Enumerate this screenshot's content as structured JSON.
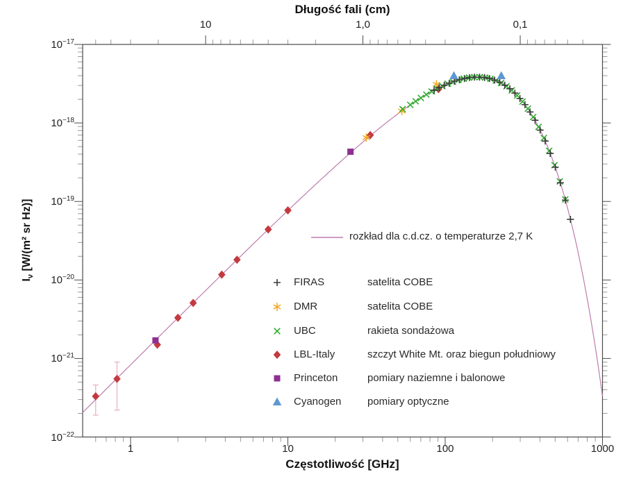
{
  "axes": {
    "top": {
      "title": "Długość fali (cm)",
      "unit": "cm",
      "scale": "log",
      "tick_labels": [
        "10",
        "1,0",
        "0,1"
      ],
      "tick_wavelengths_cm": [
        10,
        1.0,
        0.1
      ],
      "relation": "wavelength_cm = 30 / frequency_GHz"
    },
    "bottom": {
      "title": "Częstotliwość [GHz]",
      "unit": "GHz",
      "scale": "log",
      "tick_labels": [
        "1",
        "10",
        "100",
        "1000"
      ],
      "tick_values_ghz": [
        1,
        10,
        100,
        1000
      ],
      "range_ghz": [
        0.5,
        1000
      ]
    },
    "y": {
      "title_prefix": "I",
      "title_sub": "ν",
      "title_suffix": " [W/(m² sr Hz)]",
      "scale": "log",
      "tick_exponents": [
        -17,
        -18,
        -19,
        -20,
        -21,
        -22
      ],
      "range": [
        1e-22,
        1.13e-17
      ]
    }
  },
  "legend": {
    "curve_label": "rozkład dla c.d.cz. o temperaturze 2,7 K",
    "items": [
      {
        "label": "FIRAS",
        "desc": "satelita COBE",
        "marker": "plus",
        "color": "#3a3a3a"
      },
      {
        "label": "DMR",
        "desc": "satelita COBE",
        "marker": "star6",
        "color": "#f3a71f"
      },
      {
        "label": "UBC",
        "desc": "rakieta sondażowa",
        "marker": "cross",
        "color": "#2fae2f"
      },
      {
        "label": "LBL-Italy",
        "desc": "szczyt White Mt. oraz biegun południowy",
        "marker": "diamond",
        "color": "#c23a3f"
      },
      {
        "label": "Princeton",
        "desc": "pomiary naziemne i balonowe",
        "marker": "square",
        "color": "#8e2f91"
      },
      {
        "label": "Cyanogen",
        "desc": "pomiary optyczne",
        "marker": "triangle",
        "color": "#5d98d1"
      }
    ]
  },
  "chart_data": {
    "type": "scatter",
    "x_unit": "GHz",
    "y_unit": "W/(m² sr Hz)",
    "x_range": [
      0.5,
      1000
    ],
    "y_range": [
      1e-22,
      1.13e-17
    ],
    "grid": false,
    "legend_position": "center-right",
    "blackbody_curve": {
      "label": "rozkład dla c.d.cz. o temperaturze 2,7 K",
      "temperature_label": "2,7 K",
      "temperature_K": 2.725,
      "color": "#bd7cae"
    },
    "series": [
      {
        "name": "FIRAS",
        "desc": "satelita COBE",
        "marker": "plus",
        "color": "#3a3a3a",
        "points": [
          [
            85,
            2.61e-18
          ],
          [
            91.5,
            2.82e-18
          ],
          [
            98.6,
            3.02e-18
          ],
          [
            106.1,
            3.21e-18
          ],
          [
            114.3,
            3.4e-18
          ],
          [
            123,
            3.55e-18
          ],
          [
            132.5,
            3.68e-18
          ],
          [
            142.6,
            3.78e-18
          ],
          [
            153.6,
            3.83e-18
          ],
          [
            165.4,
            3.83e-18
          ],
          [
            178.1,
            3.78e-18
          ],
          [
            191.7,
            3.68e-18
          ],
          [
            206.4,
            3.51e-18
          ],
          [
            222.3,
            3.3e-18
          ],
          [
            239.3,
            3.03e-18
          ],
          [
            257.7,
            2.73e-18
          ],
          [
            277.4,
            2.4e-18
          ],
          [
            298.7,
            2.05e-18
          ],
          [
            321.6,
            1.71e-18
          ],
          [
            346.3,
            1.38e-18
          ],
          [
            372.9,
            1.08e-18
          ],
          [
            401.5,
            8.11e-19
          ],
          [
            432.3,
            5.88e-19
          ],
          [
            465.4,
            4.09e-19
          ],
          [
            501.1,
            2.73e-19
          ],
          [
            539.6,
            1.73e-19
          ],
          [
            581,
            1.04e-19
          ],
          [
            625.6,
            5.92e-20
          ]
        ]
      },
      {
        "name": "DMR",
        "desc": "satelita COBE",
        "marker": "star6",
        "color": "#f3a71f",
        "points": [
          [
            31.5,
            6.5e-19
          ],
          [
            53,
            1.42e-18
          ],
          [
            88,
            3.1e-18
          ]
        ]
      },
      {
        "name": "UBC",
        "desc": "rakieta sondażowa",
        "marker": "cross",
        "color": "#2fae2f",
        "points": [
          [
            53.6,
            1.5e-18
          ],
          [
            60,
            1.7e-18
          ],
          [
            64.9,
            1.89e-18
          ],
          [
            70.1,
            2.08e-18
          ],
          [
            75.9,
            2.3e-18
          ],
          [
            82,
            2.51e-18
          ],
          [
            88.7,
            2.73e-18
          ],
          [
            95.9,
            2.95e-18
          ],
          [
            103.7,
            3.16e-18
          ],
          [
            112.2,
            3.35e-18
          ],
          [
            121.3,
            3.52e-18
          ],
          [
            131.2,
            3.67e-18
          ],
          [
            141.8,
            3.77e-18
          ],
          [
            153.4,
            3.83e-18
          ],
          [
            165.9,
            3.83e-18
          ],
          [
            179.4,
            3.78e-18
          ],
          [
            194,
            3.65e-18
          ],
          [
            209.8,
            3.47e-18
          ],
          [
            226.8,
            3.23e-18
          ],
          [
            245.3,
            2.93e-18
          ],
          [
            265.2,
            2.6e-18
          ],
          [
            286.8,
            2.24e-18
          ],
          [
            310.1,
            1.87e-18
          ],
          [
            335.4,
            1.52e-18
          ],
          [
            362.6,
            1.19e-18
          ],
          [
            392.1,
            8.91e-19
          ],
          [
            424,
            6.43e-19
          ],
          [
            458.5,
            4.42e-19
          ],
          [
            495.8,
            2.9e-19
          ],
          [
            536.1,
            1.8e-19
          ],
          [
            579.8,
            1.06e-19
          ]
        ]
      },
      {
        "name": "LBL-Italy",
        "desc": "szczyt White Mt. oraz biegun południowy",
        "marker": "diamond",
        "color": "#c23a3f",
        "points": [
          [
            0.6,
            3.3e-22
          ],
          [
            0.82,
            5.5e-22
          ],
          [
            1.48,
            1.5e-21
          ],
          [
            2.0,
            3.3e-21
          ],
          [
            2.5,
            5.1e-21
          ],
          [
            3.8,
            1.17e-20
          ],
          [
            4.75,
            1.81e-20
          ],
          [
            7.5,
            4.4e-20
          ],
          [
            10,
            7.7e-20
          ],
          [
            33.4,
            7e-19
          ],
          [
            90.7,
            2.7e-18
          ]
        ],
        "error_bars": [
          {
            "x": 0.6,
            "y_lo": 1.9e-22,
            "y_hi": 4.6e-22
          },
          {
            "x": 0.82,
            "y_lo": 2.2e-22,
            "y_hi": 9e-22
          }
        ],
        "error_bar_color": "#e7b3c4"
      },
      {
        "name": "Princeton",
        "desc": "pomiary naziemne i balonowe",
        "marker": "square",
        "color": "#8e2f91",
        "points": [
          [
            1.44,
            1.7e-21
          ],
          [
            25,
            4.3e-19
          ]
        ]
      },
      {
        "name": "Cyanogen",
        "desc": "pomiary optyczne",
        "marker": "triangle",
        "color": "#5d98d1",
        "points": [
          [
            113.6,
            4e-18
          ],
          [
            227.3,
            4e-18
          ]
        ]
      }
    ]
  },
  "style": {
    "frame_color": "#4a4a4a",
    "major_tick_color": "#4a4a4a",
    "minor_tick_color": "#999999"
  }
}
